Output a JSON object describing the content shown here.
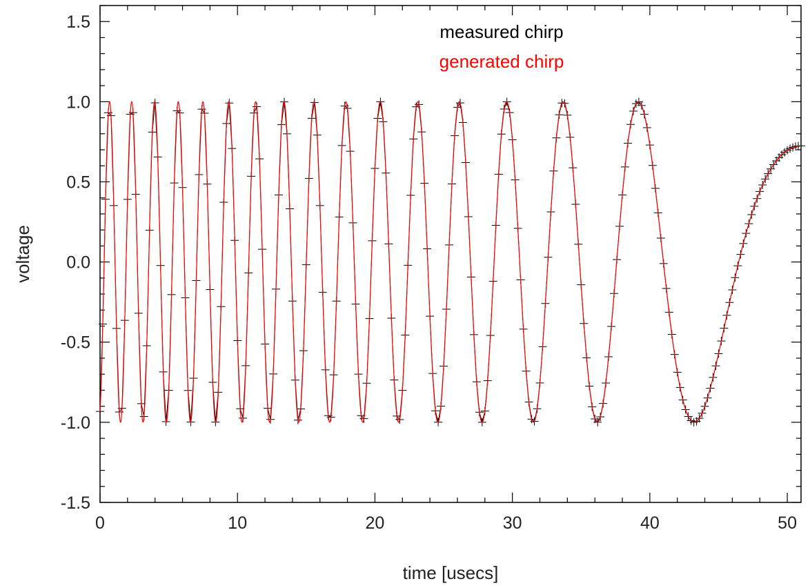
{
  "chart_data": {
    "type": "line",
    "xlabel": "time [usecs]",
    "ylabel": "voltage",
    "xlim": [
      0,
      51
    ],
    "ylim": [
      -1.5,
      1.6
    ],
    "x_ticks": [
      0,
      10,
      20,
      30,
      40,
      50
    ],
    "x_tick_labels": [
      "0",
      "10",
      "20",
      "30",
      "40",
      "50"
    ],
    "y_ticks": [
      -1.5,
      -1.0,
      -0.5,
      0.0,
      0.5,
      1.0,
      1.5
    ],
    "y_tick_labels": [
      "-1.5",
      "-1.0",
      "-0.5",
      "0.0",
      "0.5",
      "1.0",
      "1.5"
    ],
    "grid": false,
    "legend_position": "top-center",
    "chirp_signal": {
      "amplitude": 1.0,
      "start_frequency_mhz": 0.64,
      "end_frequency_mhz": 0.0,
      "phase_offset_rad": -1.2,
      "sample_interval_us": 0.2,
      "clip_low": -1.0,
      "clip_high": 1.0,
      "measured_end_us": 51
    },
    "series": [
      {
        "name": "measured chirp",
        "color": "#000000",
        "marker": "+",
        "style": "line+markers"
      },
      {
        "name": "generated chirp",
        "color": "#ff0000",
        "style": "line"
      }
    ]
  }
}
